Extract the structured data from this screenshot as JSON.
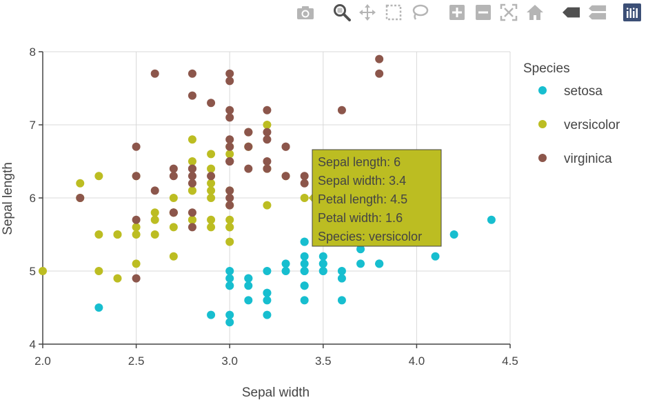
{
  "chart_data": {
    "type": "scatter",
    "xlabel": "Sepal width",
    "ylabel": "Sepal length",
    "xlim": [
      2.0,
      4.5
    ],
    "ylim": [
      4,
      8
    ],
    "xticks": [
      "2.0",
      "2.5",
      "3.0",
      "3.5",
      "4.0",
      "4.5"
    ],
    "xtick_values": [
      2.0,
      2.5,
      3.0,
      3.5,
      4.0,
      4.5
    ],
    "yticks": [
      "4",
      "5",
      "6",
      "7",
      "8"
    ],
    "ytick_values": [
      4,
      5,
      6,
      7,
      8
    ],
    "grid": true,
    "legend_title": "Species",
    "legend_position": "right",
    "series": [
      {
        "name": "setosa",
        "color": "#17becf",
        "x": [
          3.5,
          3.0,
          3.2,
          3.1,
          3.6,
          3.9,
          3.4,
          3.4,
          2.9,
          3.1,
          3.7,
          3.4,
          3.0,
          3.0,
          4.0,
          4.4,
          3.9,
          3.5,
          3.8,
          3.8,
          3.4,
          3.7,
          3.6,
          3.3,
          3.4,
          3.0,
          3.4,
          3.5,
          3.4,
          3.2,
          3.1,
          3.4,
          4.1,
          4.2,
          3.1,
          3.2,
          3.5,
          3.6,
          3.0,
          3.4,
          3.5,
          2.3,
          3.2,
          3.5,
          3.8,
          3.0,
          3.8,
          3.2,
          3.7,
          3.3
        ],
        "y": [
          5.1,
          4.9,
          4.7,
          4.6,
          5.0,
          5.4,
          4.6,
          5.0,
          4.4,
          4.9,
          5.4,
          4.8,
          4.8,
          4.3,
          5.8,
          5.7,
          5.4,
          5.1,
          5.7,
          5.1,
          5.4,
          5.1,
          4.6,
          5.1,
          4.8,
          5.0,
          5.0,
          5.2,
          5.2,
          4.7,
          4.8,
          5.4,
          5.2,
          5.5,
          4.9,
          5.0,
          5.5,
          4.9,
          4.4,
          5.1,
          5.0,
          4.5,
          4.4,
          5.0,
          5.1,
          4.8,
          5.1,
          4.6,
          5.3,
          5.0
        ]
      },
      {
        "name": "versicolor",
        "color": "#bcbd22",
        "x": [
          3.2,
          3.2,
          3.1,
          2.3,
          2.8,
          2.8,
          3.3,
          2.4,
          2.9,
          2.7,
          2.0,
          3.0,
          2.2,
          2.9,
          2.9,
          3.1,
          3.0,
          2.7,
          2.2,
          2.5,
          3.2,
          2.8,
          2.5,
          2.8,
          2.9,
          3.0,
          2.8,
          3.0,
          2.9,
          2.6,
          2.4,
          2.4,
          2.7,
          2.7,
          3.0,
          3.4,
          3.1,
          2.3,
          3.0,
          2.5,
          2.6,
          3.0,
          2.6,
          2.3,
          2.7,
          3.0,
          2.9,
          2.9,
          2.5,
          2.8
        ],
        "y": [
          7.0,
          6.4,
          6.9,
          5.5,
          6.5,
          5.7,
          6.3,
          4.9,
          6.6,
          5.2,
          5.0,
          5.9,
          6.0,
          6.1,
          5.6,
          6.7,
          5.6,
          5.8,
          6.2,
          5.6,
          5.9,
          6.1,
          6.3,
          6.1,
          6.4,
          6.6,
          6.8,
          6.7,
          6.0,
          5.7,
          5.5,
          5.5,
          5.8,
          6.0,
          5.4,
          6.0,
          6.7,
          6.3,
          5.6,
          5.5,
          5.5,
          6.1,
          5.8,
          5.0,
          5.6,
          5.7,
          5.7,
          6.2,
          5.1,
          5.7
        ]
      },
      {
        "name": "virginica",
        "color": "#8c564b",
        "x": [
          3.3,
          2.7,
          3.0,
          2.9,
          3.0,
          3.0,
          2.5,
          2.9,
          2.5,
          3.6,
          3.2,
          2.7,
          3.0,
          2.5,
          2.8,
          3.2,
          3.0,
          3.8,
          2.6,
          2.2,
          3.2,
          2.8,
          2.8,
          2.7,
          3.3,
          3.2,
          2.8,
          3.0,
          2.8,
          3.0,
          2.8,
          3.8,
          2.8,
          2.8,
          2.6,
          3.0,
          3.4,
          3.1,
          3.0,
          3.1,
          3.1,
          3.1,
          2.7,
          3.2,
          3.3,
          3.0,
          2.5,
          3.0,
          3.4,
          3.0
        ],
        "y": [
          6.3,
          5.8,
          7.1,
          6.3,
          6.5,
          7.6,
          4.9,
          7.3,
          6.7,
          7.2,
          6.5,
          6.4,
          6.8,
          5.7,
          5.8,
          6.4,
          6.5,
          7.7,
          7.7,
          6.0,
          6.9,
          5.6,
          7.7,
          6.3,
          6.7,
          7.2,
          6.2,
          6.1,
          6.4,
          7.2,
          7.4,
          7.9,
          6.4,
          6.3,
          6.1,
          7.7,
          6.3,
          6.4,
          6.0,
          6.9,
          6.7,
          6.9,
          5.8,
          6.8,
          6.7,
          6.7,
          6.3,
          6.5,
          6.2,
          5.9
        ]
      }
    ]
  },
  "tooltip": {
    "color": "#bcbd22",
    "point": {
      "x": 3.4,
      "y": 6.0
    },
    "lines": [
      "Sepal length: 6",
      "Sepal width: 3.4",
      "Petal length: 4.5",
      "Petal width: 1.6",
      "Species: versicolor"
    ]
  },
  "modebar": {
    "buttons": [
      "camera-icon",
      "zoom-icon",
      "pan-icon",
      "box-select-icon",
      "lasso-select-icon",
      "zoom-in-icon",
      "zoom-out-icon",
      "autoscale-icon",
      "home-icon",
      "spike-lines-icon",
      "compare-hover-icon",
      "plotly-logo-icon"
    ]
  }
}
